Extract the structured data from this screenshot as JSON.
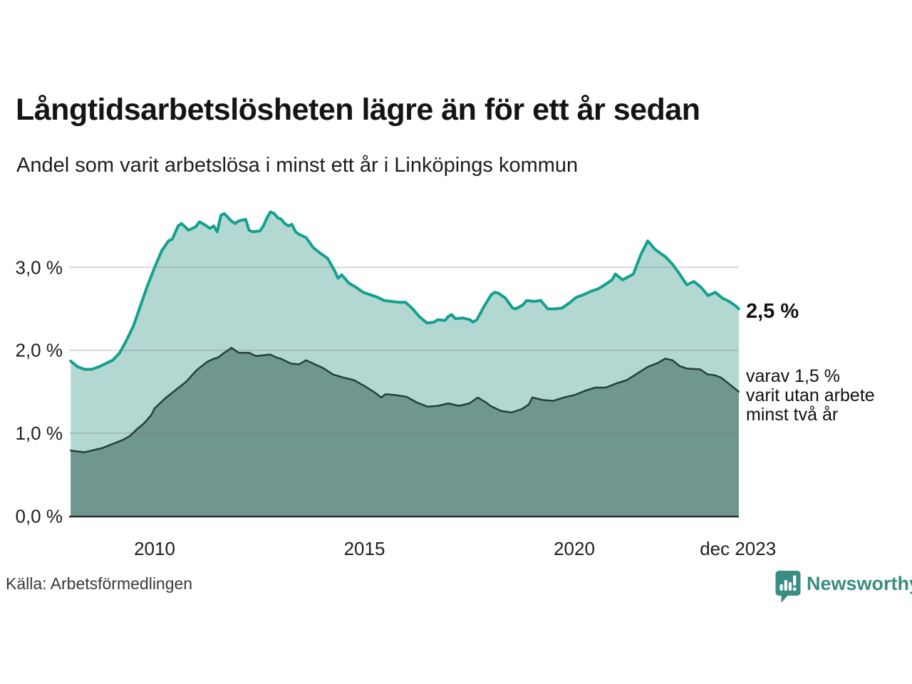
{
  "chart_data": {
    "type": "area",
    "title": "Långtidsarbetslösheten lägre än för ett år sedan",
    "subtitle": "Andel som varit arbetslösa i minst ett år i Linköpings kommun",
    "xlabel": "",
    "ylabel": "",
    "grid": true,
    "legend_position": "none",
    "x_range": [
      2008.0,
      2023.92
    ],
    "ylim": [
      0,
      3.73
    ],
    "x_ticks": [
      {
        "label": "2010",
        "year": 2010
      },
      {
        "label": "2015",
        "year": 2015
      },
      {
        "label": "2020",
        "year": 2020
      },
      {
        "label": "dec 2023",
        "year": 2023.9
      }
    ],
    "y_ticks": [
      {
        "label": "0,0 %",
        "value": 0
      },
      {
        "label": "1,0 %",
        "value": 1
      },
      {
        "label": "2,0 %",
        "value": 2
      },
      {
        "label": "3,0 %",
        "value": 3
      }
    ],
    "series": [
      {
        "name": "Andel arbetslösa minst ett år",
        "fill": "#b3d8d2",
        "stroke": "#13a08e",
        "stroke_width": 4,
        "points": [
          [
            2008.0,
            1.87
          ],
          [
            2008.17,
            1.8
          ],
          [
            2008.33,
            1.77
          ],
          [
            2008.5,
            1.77
          ],
          [
            2008.67,
            1.8
          ],
          [
            2008.83,
            1.84
          ],
          [
            2009.0,
            1.88
          ],
          [
            2009.17,
            1.97
          ],
          [
            2009.33,
            2.12
          ],
          [
            2009.5,
            2.3
          ],
          [
            2009.67,
            2.55
          ],
          [
            2009.83,
            2.78
          ],
          [
            2010.0,
            3.0
          ],
          [
            2010.17,
            3.2
          ],
          [
            2010.33,
            3.32
          ],
          [
            2010.42,
            3.34
          ],
          [
            2010.56,
            3.5
          ],
          [
            2010.64,
            3.53
          ],
          [
            2010.81,
            3.45
          ],
          [
            2010.98,
            3.49
          ],
          [
            2011.07,
            3.55
          ],
          [
            2011.24,
            3.5
          ],
          [
            2011.32,
            3.47
          ],
          [
            2011.41,
            3.5
          ],
          [
            2011.49,
            3.43
          ],
          [
            2011.58,
            3.63
          ],
          [
            2011.66,
            3.65
          ],
          [
            2011.83,
            3.56
          ],
          [
            2011.92,
            3.53
          ],
          [
            2012.0,
            3.56
          ],
          [
            2012.17,
            3.58
          ],
          [
            2012.25,
            3.45
          ],
          [
            2012.34,
            3.43
          ],
          [
            2012.51,
            3.44
          ],
          [
            2012.59,
            3.5
          ],
          [
            2012.68,
            3.6
          ],
          [
            2012.76,
            3.67
          ],
          [
            2012.85,
            3.65
          ],
          [
            2012.93,
            3.6
          ],
          [
            2013.02,
            3.58
          ],
          [
            2013.1,
            3.53
          ],
          [
            2013.19,
            3.5
          ],
          [
            2013.27,
            3.52
          ],
          [
            2013.36,
            3.43
          ],
          [
            2013.44,
            3.4
          ],
          [
            2013.61,
            3.36
          ],
          [
            2013.78,
            3.24
          ],
          [
            2013.95,
            3.17
          ],
          [
            2014.12,
            3.11
          ],
          [
            2014.29,
            2.96
          ],
          [
            2014.37,
            2.87
          ],
          [
            2014.46,
            2.91
          ],
          [
            2014.63,
            2.81
          ],
          [
            2014.8,
            2.76
          ],
          [
            2014.97,
            2.7
          ],
          [
            2015.14,
            2.67
          ],
          [
            2015.31,
            2.64
          ],
          [
            2015.47,
            2.6
          ],
          [
            2015.64,
            2.59
          ],
          [
            2015.81,
            2.58
          ],
          [
            2015.98,
            2.58
          ],
          [
            2016.15,
            2.5
          ],
          [
            2016.32,
            2.4
          ],
          [
            2016.49,
            2.33
          ],
          [
            2016.66,
            2.34
          ],
          [
            2016.75,
            2.37
          ],
          [
            2016.92,
            2.36
          ],
          [
            2017.0,
            2.41
          ],
          [
            2017.08,
            2.43
          ],
          [
            2017.17,
            2.38
          ],
          [
            2017.34,
            2.39
          ],
          [
            2017.51,
            2.37
          ],
          [
            2017.59,
            2.34
          ],
          [
            2017.68,
            2.37
          ],
          [
            2017.85,
            2.53
          ],
          [
            2018.02,
            2.67
          ],
          [
            2018.1,
            2.7
          ],
          [
            2018.19,
            2.69
          ],
          [
            2018.36,
            2.63
          ],
          [
            2018.53,
            2.51
          ],
          [
            2018.61,
            2.5
          ],
          [
            2018.78,
            2.55
          ],
          [
            2018.86,
            2.6
          ],
          [
            2019.03,
            2.59
          ],
          [
            2019.2,
            2.6
          ],
          [
            2019.37,
            2.5
          ],
          [
            2019.54,
            2.5
          ],
          [
            2019.71,
            2.51
          ],
          [
            2019.88,
            2.57
          ],
          [
            2020.05,
            2.64
          ],
          [
            2020.22,
            2.67
          ],
          [
            2020.39,
            2.71
          ],
          [
            2020.56,
            2.74
          ],
          [
            2020.73,
            2.79
          ],
          [
            2020.9,
            2.85
          ],
          [
            2020.98,
            2.92
          ],
          [
            2021.15,
            2.85
          ],
          [
            2021.41,
            2.92
          ],
          [
            2021.58,
            3.15
          ],
          [
            2021.75,
            3.32
          ],
          [
            2021.92,
            3.22
          ],
          [
            2022.08,
            3.16
          ],
          [
            2022.17,
            3.13
          ],
          [
            2022.34,
            3.04
          ],
          [
            2022.51,
            2.92
          ],
          [
            2022.68,
            2.79
          ],
          [
            2022.85,
            2.83
          ],
          [
            2023.02,
            2.76
          ],
          [
            2023.19,
            2.66
          ],
          [
            2023.36,
            2.7
          ],
          [
            2023.53,
            2.63
          ],
          [
            2023.69,
            2.59
          ],
          [
            2023.86,
            2.53
          ],
          [
            2023.92,
            2.5
          ]
        ]
      },
      {
        "name": "Andel arbetslösa minst två år",
        "fill": "#6f978f",
        "stroke": "#24403a",
        "stroke_width": 2.5,
        "points": [
          [
            2008.0,
            0.79
          ],
          [
            2008.17,
            0.78
          ],
          [
            2008.33,
            0.77
          ],
          [
            2008.5,
            0.79
          ],
          [
            2008.75,
            0.82
          ],
          [
            2009.0,
            0.87
          ],
          [
            2009.25,
            0.92
          ],
          [
            2009.42,
            0.97
          ],
          [
            2009.58,
            1.05
          ],
          [
            2009.75,
            1.12
          ],
          [
            2009.92,
            1.22
          ],
          [
            2010.0,
            1.3
          ],
          [
            2010.25,
            1.42
          ],
          [
            2010.5,
            1.52
          ],
          [
            2010.75,
            1.62
          ],
          [
            2011.0,
            1.76
          ],
          [
            2011.25,
            1.86
          ],
          [
            2011.42,
            1.9
          ],
          [
            2011.5,
            1.91
          ],
          [
            2011.66,
            1.97
          ],
          [
            2011.75,
            2.0
          ],
          [
            2011.83,
            2.03
          ],
          [
            2011.92,
            2.0
          ],
          [
            2012.0,
            1.97
          ],
          [
            2012.25,
            1.97
          ],
          [
            2012.42,
            1.93
          ],
          [
            2012.59,
            1.94
          ],
          [
            2012.75,
            1.95
          ],
          [
            2012.92,
            1.91
          ],
          [
            2013.0,
            1.9
          ],
          [
            2013.25,
            1.84
          ],
          [
            2013.44,
            1.83
          ],
          [
            2013.61,
            1.88
          ],
          [
            2013.78,
            1.84
          ],
          [
            2014.0,
            1.79
          ],
          [
            2014.25,
            1.71
          ],
          [
            2014.5,
            1.67
          ],
          [
            2014.75,
            1.64
          ],
          [
            2015.0,
            1.57
          ],
          [
            2015.25,
            1.49
          ],
          [
            2015.4,
            1.43
          ],
          [
            2015.5,
            1.47
          ],
          [
            2015.75,
            1.46
          ],
          [
            2016.0,
            1.44
          ],
          [
            2016.25,
            1.37
          ],
          [
            2016.5,
            1.32
          ],
          [
            2016.75,
            1.33
          ],
          [
            2017.0,
            1.36
          ],
          [
            2017.25,
            1.33
          ],
          [
            2017.5,
            1.36
          ],
          [
            2017.7,
            1.43
          ],
          [
            2017.9,
            1.37
          ],
          [
            2018.0,
            1.33
          ],
          [
            2018.25,
            1.27
          ],
          [
            2018.5,
            1.25
          ],
          [
            2018.75,
            1.29
          ],
          [
            2018.92,
            1.35
          ],
          [
            2019.0,
            1.43
          ],
          [
            2019.25,
            1.4
          ],
          [
            2019.5,
            1.39
          ],
          [
            2019.75,
            1.43
          ],
          [
            2020.0,
            1.46
          ],
          [
            2020.25,
            1.51
          ],
          [
            2020.5,
            1.55
          ],
          [
            2020.75,
            1.55
          ],
          [
            2021.0,
            1.6
          ],
          [
            2021.25,
            1.64
          ],
          [
            2021.5,
            1.72
          ],
          [
            2021.75,
            1.8
          ],
          [
            2022.0,
            1.85
          ],
          [
            2022.17,
            1.9
          ],
          [
            2022.34,
            1.88
          ],
          [
            2022.51,
            1.81
          ],
          [
            2022.68,
            1.78
          ],
          [
            2023.0,
            1.77
          ],
          [
            2023.17,
            1.71
          ],
          [
            2023.34,
            1.7
          ],
          [
            2023.5,
            1.67
          ],
          [
            2023.75,
            1.57
          ],
          [
            2023.92,
            1.5
          ]
        ]
      }
    ]
  },
  "annotations": {
    "value_total": "2,5 %",
    "detail_lines": [
      "varav 1,5 %",
      "varit utan arbete",
      "minst två år"
    ]
  },
  "footer": {
    "source": "Källa: Arbetsförmedlingen",
    "brand": "Newsworthy"
  },
  "colors": {
    "area_light": "#b3d8d2",
    "area_dark": "#6f978f",
    "line_teal": "#13a08e",
    "line_dark": "#24403a",
    "axis": "#2e2e2e",
    "gridline": "rgba(110,110,110,0.28)",
    "brand_teal": "#3a8d82",
    "text": "#141414"
  }
}
